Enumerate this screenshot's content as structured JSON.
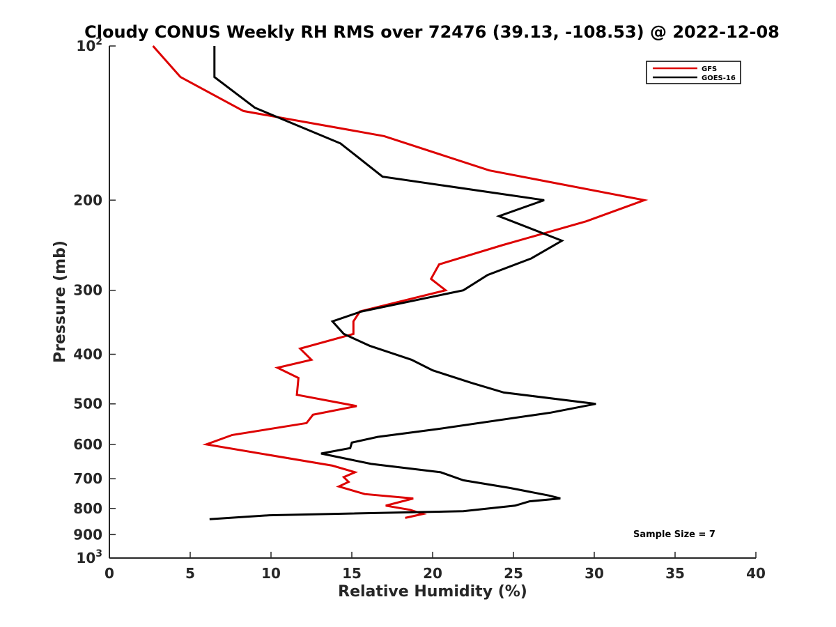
{
  "chart_data": {
    "type": "line",
    "title": "Cloudy CONUS Weekly RH RMS over 72476 (39.13, -108.53) @ 2022-12-08",
    "xlabel": "Relative Humidity (%)",
    "ylabel": "Pressure (mb)",
    "xlim": [
      0,
      40
    ],
    "ylim": [
      100,
      1000
    ],
    "yscale": "log",
    "y_inverted": true,
    "grid": false,
    "legend_position": "top-right",
    "x_ticks": [
      "0",
      "5",
      "10",
      "15",
      "20",
      "25",
      "30",
      "35",
      "40"
    ],
    "x_tick_values": [
      0,
      5,
      10,
      15,
      20,
      25,
      30,
      35,
      40
    ],
    "y_ticks": [
      {
        "value": 100,
        "base": "10",
        "exp": "2"
      },
      {
        "value": 200,
        "text": "200"
      },
      {
        "value": 300,
        "text": "300"
      },
      {
        "value": 400,
        "text": "400"
      },
      {
        "value": 500,
        "text": "500"
      },
      {
        "value": 600,
        "text": "600"
      },
      {
        "value": 700,
        "text": "700"
      },
      {
        "value": 800,
        "text": "800"
      },
      {
        "value": 900,
        "text": "900"
      },
      {
        "value": 1000,
        "base": "10",
        "exp": "3"
      }
    ],
    "annotation": "Sample Size = 7",
    "series": [
      {
        "name": "GFS",
        "color": "#dd0000",
        "points": [
          [
            2.7,
            100
          ],
          [
            4.4,
            115
          ],
          [
            8.3,
            134
          ],
          [
            17,
            150
          ],
          [
            23.5,
            175
          ],
          [
            33.1,
            200
          ],
          [
            29.5,
            220
          ],
          [
            24.3,
            245
          ],
          [
            20.4,
            267
          ],
          [
            19.9,
            285
          ],
          [
            20.8,
            300
          ],
          [
            15.5,
            330
          ],
          [
            15.1,
            345
          ],
          [
            15.1,
            365
          ],
          [
            11.8,
            390
          ],
          [
            12.5,
            410
          ],
          [
            10.4,
            425
          ],
          [
            11.7,
            445
          ],
          [
            11.6,
            480
          ],
          [
            15.3,
            505
          ],
          [
            12.6,
            525
          ],
          [
            12.2,
            545
          ],
          [
            7.6,
            575
          ],
          [
            6,
            600
          ],
          [
            13.8,
            660
          ],
          [
            15.2,
            680
          ],
          [
            14.5,
            695
          ],
          [
            14.8,
            710
          ],
          [
            14.2,
            725
          ],
          [
            15.8,
            750
          ],
          [
            18.8,
            765
          ],
          [
            17.1,
            790
          ],
          [
            18.6,
            805
          ],
          [
            19.4,
            820
          ],
          [
            18.3,
            835
          ]
        ]
      },
      {
        "name": "GOES-16",
        "color": "#000000",
        "points": [
          [
            6.5,
            100
          ],
          [
            6.5,
            115
          ],
          [
            9,
            132
          ],
          [
            14.3,
            155
          ],
          [
            16.9,
            180
          ],
          [
            26.9,
            200
          ],
          [
            24.1,
            215
          ],
          [
            28,
            240
          ],
          [
            26.1,
            260
          ],
          [
            23.4,
            280
          ],
          [
            21.9,
            300
          ],
          [
            15.6,
            330
          ],
          [
            13.8,
            345
          ],
          [
            14.5,
            365
          ],
          [
            16.1,
            385
          ],
          [
            18.7,
            410
          ],
          [
            20,
            430
          ],
          [
            22.4,
            455
          ],
          [
            24.4,
            475
          ],
          [
            30.1,
            500
          ],
          [
            27.3,
            520
          ],
          [
            20.3,
            560
          ],
          [
            16.6,
            580
          ],
          [
            15,
            595
          ],
          [
            14.9,
            610
          ],
          [
            13.1,
            625
          ],
          [
            16.2,
            655
          ],
          [
            20.5,
            680
          ],
          [
            21.9,
            705
          ],
          [
            24.8,
            730
          ],
          [
            27.2,
            755
          ],
          [
            27.9,
            765
          ],
          [
            26,
            775
          ],
          [
            25.1,
            790
          ],
          [
            21.9,
            810
          ],
          [
            9.9,
            825
          ],
          [
            6.2,
            840
          ]
        ]
      }
    ]
  }
}
